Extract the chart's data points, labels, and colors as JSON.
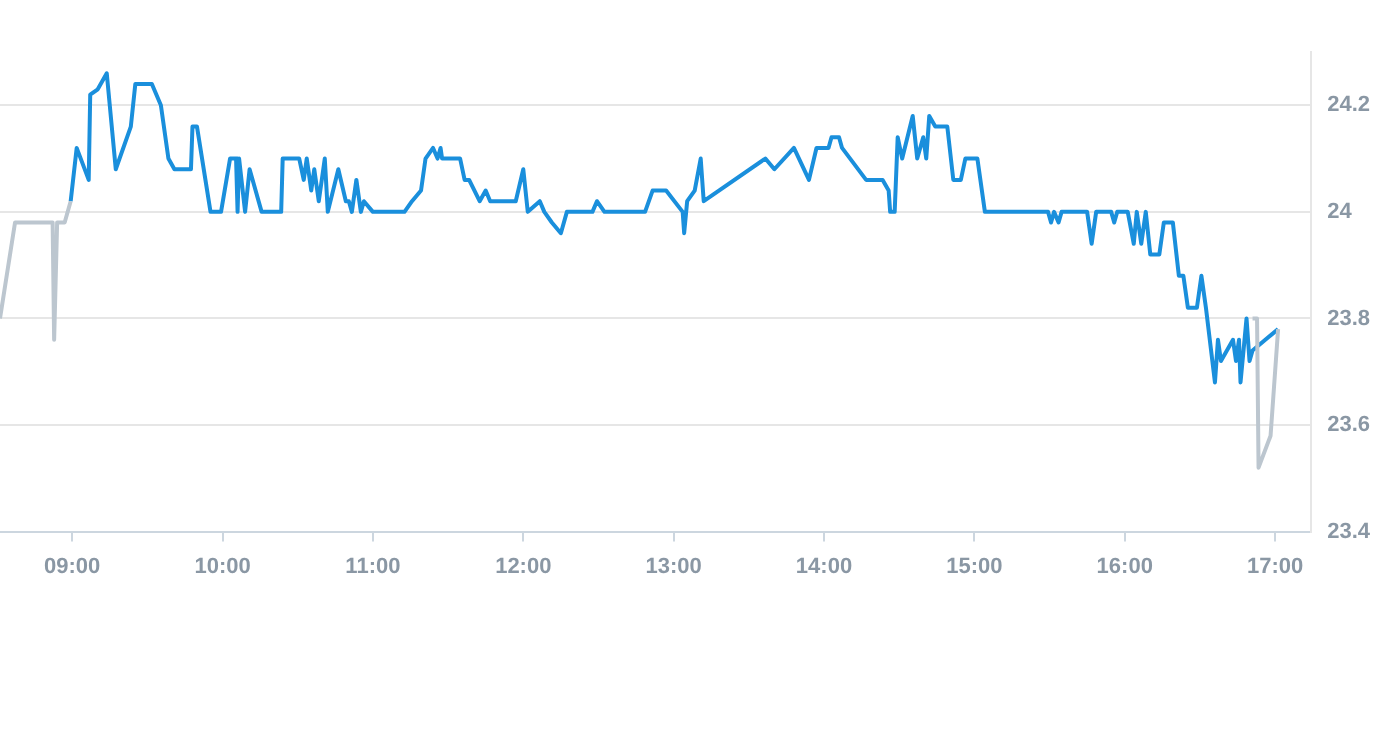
{
  "chart_data": {
    "type": "line",
    "xlim": [
      8.52,
      17.24
    ],
    "ylim": [
      23.4,
      24.3
    ],
    "xticks": [
      {
        "value": 9,
        "label": "09:00"
      },
      {
        "value": 10,
        "label": "10:00"
      },
      {
        "value": 11,
        "label": "11:00"
      },
      {
        "value": 12,
        "label": "12:00"
      },
      {
        "value": 13,
        "label": "13:00"
      },
      {
        "value": 14,
        "label": "14:00"
      },
      {
        "value": 15,
        "label": "15:00"
      },
      {
        "value": 16,
        "label": "16:00"
      },
      {
        "value": 17,
        "label": "17:00"
      }
    ],
    "yticks": [
      23.4,
      23.6,
      23.8,
      {
        "value": 24,
        "label": "24"
      },
      24.2
    ],
    "grid": "y",
    "legend": false,
    "marker": "none",
    "line_style": "solid",
    "series": [
      {
        "color": "#bcc6cf",
        "x": [
          8.52,
          8.62,
          8.87,
          8.88,
          8.9,
          8.95,
          8.99
        ],
        "values": [
          23.8,
          23.98,
          23.98,
          23.76,
          23.98,
          23.98,
          24.02
        ]
      },
      {
        "color": "#bcc6cf",
        "x": [
          16.85,
          16.88,
          16.89,
          16.97,
          17.02
        ],
        "values": [
          23.8,
          23.8,
          23.52,
          23.58,
          23.78
        ]
      },
      {
        "color": "#1a8fdc",
        "x": [
          8.99,
          9.03,
          9.11,
          9.12,
          9.17,
          9.23,
          9.29,
          9.39,
          9.42,
          9.53,
          9.59,
          9.64,
          9.68,
          9.79,
          9.8,
          9.83,
          9.92,
          9.99,
          10.05,
          10.09,
          10.1,
          10.11,
          10.15,
          10.18,
          10.26,
          10.39,
          10.4,
          10.51,
          10.54,
          10.56,
          10.59,
          10.61,
          10.64,
          10.68,
          10.7,
          10.77,
          10.82,
          10.84,
          10.86,
          10.89,
          10.92,
          10.94,
          11.0,
          11.21,
          11.26,
          11.32,
          11.35,
          11.4,
          11.43,
          11.45,
          11.46,
          11.58,
          11.61,
          11.64,
          11.71,
          11.75,
          11.78,
          11.95,
          12.0,
          12.03,
          12.11,
          12.14,
          12.19,
          12.25,
          12.29,
          12.46,
          12.49,
          12.54,
          12.81,
          12.86,
          12.95,
          13.06,
          13.07,
          13.09,
          13.14,
          13.18,
          13.2,
          13.61,
          13.67,
          13.8,
          13.9,
          13.95,
          14.03,
          14.05,
          14.1,
          14.12,
          14.28,
          14.39,
          14.43,
          14.44,
          14.47,
          14.49,
          14.52,
          14.59,
          14.62,
          14.66,
          14.68,
          14.7,
          14.74,
          14.82,
          14.86,
          14.91,
          14.94,
          15.02,
          15.07,
          15.49,
          15.51,
          15.53,
          15.56,
          15.58,
          15.75,
          15.78,
          15.81,
          15.91,
          15.93,
          15.95,
          16.02,
          16.06,
          16.08,
          16.11,
          16.14,
          16.17,
          16.23,
          16.26,
          16.32,
          16.36,
          16.39,
          16.42,
          16.48,
          16.51,
          16.54,
          16.6,
          16.62,
          16.64,
          16.72,
          16.74,
          16.76,
          16.77,
          16.81,
          16.83,
          16.85,
          17.02
        ],
        "values": [
          24.02,
          24.12,
          24.06,
          24.22,
          24.23,
          24.26,
          24.08,
          24.16,
          24.24,
          24.24,
          24.2,
          24.1,
          24.08,
          24.08,
          24.16,
          24.16,
          24.0,
          24.0,
          24.1,
          24.1,
          24.0,
          24.1,
          24.0,
          24.08,
          24.0,
          24.0,
          24.1,
          24.1,
          24.06,
          24.1,
          24.04,
          24.08,
          24.02,
          24.1,
          24.0,
          24.08,
          24.02,
          24.02,
          24.0,
          24.06,
          24.0,
          24.02,
          24.0,
          24.0,
          24.02,
          24.04,
          24.1,
          24.12,
          24.1,
          24.12,
          24.1,
          24.1,
          24.06,
          24.06,
          24.02,
          24.04,
          24.02,
          24.02,
          24.08,
          24.0,
          24.02,
          24.0,
          23.98,
          23.96,
          24.0,
          24.0,
          24.02,
          24.0,
          24.0,
          24.04,
          24.04,
          24.0,
          23.96,
          24.02,
          24.04,
          24.1,
          24.02,
          24.1,
          24.08,
          24.12,
          24.06,
          24.12,
          24.12,
          24.14,
          24.14,
          24.12,
          24.06,
          24.06,
          24.04,
          24.0,
          24.0,
          24.14,
          24.1,
          24.18,
          24.1,
          24.14,
          24.1,
          24.18,
          24.16,
          24.16,
          24.06,
          24.06,
          24.1,
          24.1,
          24.0,
          24.0,
          23.98,
          24.0,
          23.98,
          24.0,
          24.0,
          23.94,
          24.0,
          24.0,
          23.98,
          24.0,
          24.0,
          23.94,
          24.0,
          23.94,
          24.0,
          23.92,
          23.92,
          23.98,
          23.98,
          23.88,
          23.88,
          23.82,
          23.82,
          23.88,
          23.82,
          23.68,
          23.76,
          23.72,
          23.76,
          23.72,
          23.76,
          23.68,
          23.8,
          23.72,
          23.74,
          23.78
        ]
      }
    ]
  }
}
